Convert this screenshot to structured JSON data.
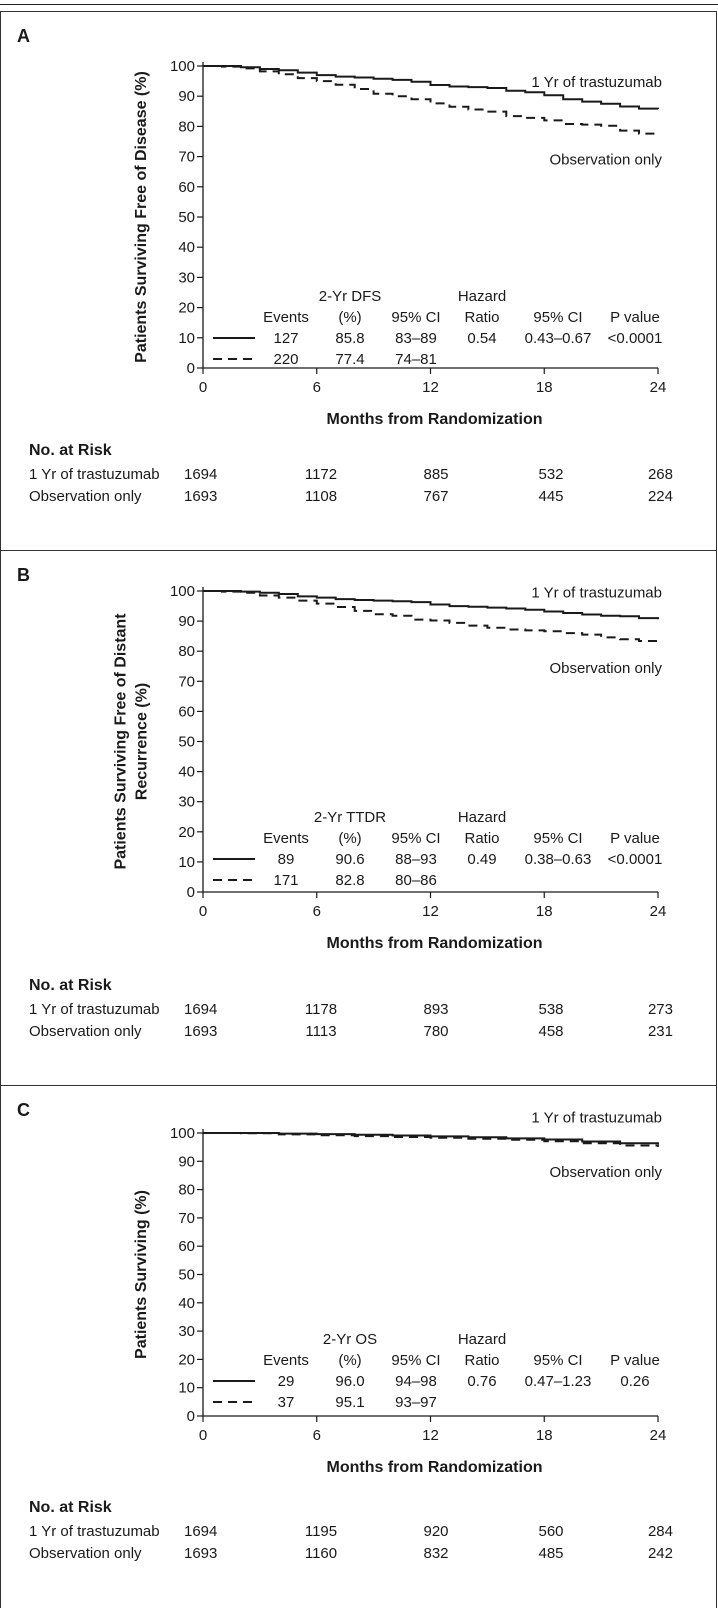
{
  "colors": {
    "line": "#1a1a1a",
    "border": "#333333",
    "background": "#ffffff"
  },
  "x_axis_label": "Months from Randomization",
  "risk_title": "No. at Risk",
  "chart_data": [
    {
      "panel": "A",
      "type": "line",
      "ylabel": "Patients Surviving Free of Disease (%)",
      "xlabel": "Months from Randomization",
      "xlim": [
        0,
        24
      ],
      "ylim": [
        0,
        100
      ],
      "xticks": [
        0,
        6,
        12,
        18,
        24
      ],
      "yticks": [
        0,
        10,
        20,
        30,
        40,
        50,
        60,
        70,
        80,
        90,
        100
      ],
      "grid": false,
      "series": [
        {
          "name": "1 Yr of trastuzumab",
          "style": "solid",
          "x": [
            0,
            1,
            2,
            3,
            4,
            5,
            6,
            7,
            8,
            9,
            10,
            11,
            12,
            13,
            14,
            15,
            16,
            17,
            18,
            19,
            20,
            21,
            22,
            23,
            24
          ],
          "y": [
            100,
            100,
            99.6,
            99.0,
            98.6,
            97.8,
            97.0,
            96.5,
            96.2,
            95.8,
            95.4,
            94.8,
            93.7,
            93.2,
            93.0,
            92.7,
            91.8,
            91.3,
            90.3,
            89.0,
            88.2,
            87.5,
            86.6,
            85.9,
            85.8
          ]
        },
        {
          "name": "Observation only",
          "style": "dashed",
          "x": [
            0,
            1,
            2,
            3,
            4,
            5,
            6,
            7,
            8,
            9,
            10,
            11,
            12,
            13,
            14,
            15,
            16,
            17,
            18,
            19,
            20,
            21,
            22,
            23,
            24
          ],
          "y": [
            100,
            99.8,
            99.2,
            98.2,
            97.3,
            96.0,
            95.0,
            93.8,
            92.4,
            90.8,
            90.0,
            89.0,
            87.6,
            86.5,
            85.6,
            84.9,
            83.4,
            82.8,
            82.0,
            80.8,
            80.6,
            80.2,
            78.6,
            77.6,
            77.4
          ]
        }
      ],
      "legend_table": {
        "header_line1": [
          "",
          "2-Yr DFS",
          "",
          "Hazard",
          "",
          ""
        ],
        "header_line2": [
          "Events",
          "(%)",
          "95% CI",
          "Ratio",
          "95% CI",
          "P value"
        ],
        "rows": [
          [
            "127",
            "85.8",
            "83–89",
            "0.54",
            "0.43–0.67",
            "<0.0001"
          ],
          [
            "220",
            "77.4",
            "74–81",
            "",
            "",
            ""
          ]
        ]
      },
      "risk_table": {
        "times": [
          0,
          6,
          12,
          18,
          24
        ],
        "rows": [
          {
            "label": "1 Yr of trastuzumab",
            "values": [
              "1694",
              "1172",
              "885",
              "532",
              "268"
            ]
          },
          {
            "label": "Observation only",
            "values": [
              "1693",
              "1108",
              "767",
              "445",
              "224"
            ]
          }
        ]
      }
    },
    {
      "panel": "B",
      "type": "line",
      "ylabel": "Patients Surviving Free of Distant Recurrence (%)",
      "ylabel_lines": [
        "Patients Surviving Free of Distant",
        "Recurrence (%)"
      ],
      "xlabel": "Months from Randomization",
      "xlim": [
        0,
        24
      ],
      "ylim": [
        0,
        100
      ],
      "xticks": [
        0,
        6,
        12,
        18,
        24
      ],
      "yticks": [
        0,
        10,
        20,
        30,
        40,
        50,
        60,
        70,
        80,
        90,
        100
      ],
      "grid": false,
      "series": [
        {
          "name": "1 Yr of trastuzumab",
          "style": "solid",
          "x": [
            0,
            1,
            2,
            3,
            4,
            5,
            6,
            7,
            8,
            9,
            10,
            11,
            12,
            13,
            14,
            15,
            16,
            17,
            18,
            19,
            20,
            21,
            22,
            23,
            24
          ],
          "y": [
            100,
            100,
            99.8,
            99.4,
            99.0,
            98.2,
            97.8,
            97.3,
            97.0,
            96.8,
            96.6,
            96.3,
            95.5,
            95.0,
            94.8,
            94.5,
            94.2,
            93.8,
            93.2,
            92.7,
            92.2,
            91.8,
            91.6,
            91.0,
            90.6
          ]
        },
        {
          "name": "Observation only",
          "style": "dashed",
          "x": [
            0,
            1,
            2,
            3,
            4,
            5,
            6,
            7,
            8,
            9,
            10,
            11,
            12,
            13,
            14,
            15,
            16,
            17,
            18,
            19,
            20,
            21,
            22,
            23,
            24
          ],
          "y": [
            100,
            99.8,
            99.4,
            98.5,
            97.8,
            96.8,
            95.8,
            94.7,
            93.4,
            92.3,
            91.8,
            90.5,
            90.2,
            89.4,
            88.5,
            87.8,
            87.2,
            86.9,
            86.6,
            86.0,
            85.5,
            84.6,
            84.0,
            83.4,
            82.8
          ]
        }
      ],
      "legend_table": {
        "header_line1": [
          "",
          "2-Yr TTDR",
          "",
          "Hazard",
          "",
          ""
        ],
        "header_line2": [
          "Events",
          "(%)",
          "95% CI",
          "Ratio",
          "95% CI",
          "P value"
        ],
        "rows": [
          [
            "89",
            "90.6",
            "88–93",
            "0.49",
            "0.38–0.63",
            "<0.0001"
          ],
          [
            "171",
            "82.8",
            "80–86",
            "",
            "",
            ""
          ]
        ]
      },
      "risk_table": {
        "times": [
          0,
          6,
          12,
          18,
          24
        ],
        "rows": [
          {
            "label": "1 Yr of trastuzumab",
            "values": [
              "1694",
              "1178",
              "893",
              "538",
              "273"
            ]
          },
          {
            "label": "Observation only",
            "values": [
              "1693",
              "1113",
              "780",
              "458",
              "231"
            ]
          }
        ]
      }
    },
    {
      "panel": "C",
      "type": "line",
      "ylabel": "Patients Surviving (%)",
      "xlabel": "Months from Randomization",
      "xlim": [
        0,
        24
      ],
      "ylim": [
        0,
        100
      ],
      "xticks": [
        0,
        6,
        12,
        18,
        24
      ],
      "yticks": [
        0,
        10,
        20,
        30,
        40,
        50,
        60,
        70,
        80,
        90,
        100
      ],
      "grid": false,
      "series": [
        {
          "name": "1 Yr of trastuzumab",
          "style": "solid",
          "x": [
            0,
            2,
            4,
            6,
            8,
            10,
            12,
            14,
            16,
            18,
            20,
            22,
            24
          ],
          "y": [
            100,
            100,
            99.8,
            99.6,
            99.4,
            99.1,
            98.8,
            98.5,
            98.1,
            97.7,
            97.0,
            96.4,
            96.0
          ]
        },
        {
          "name": "Observation only",
          "style": "dashed",
          "x": [
            0,
            2,
            4,
            6,
            8,
            10,
            12,
            14,
            16,
            18,
            20,
            22,
            24
          ],
          "y": [
            100,
            99.9,
            99.5,
            99.2,
            98.9,
            98.6,
            98.3,
            98.0,
            97.6,
            97.1,
            96.4,
            95.6,
            95.1
          ]
        }
      ],
      "legend_table": {
        "header_line1": [
          "",
          "2-Yr OS",
          "",
          "Hazard",
          "",
          ""
        ],
        "header_line2": [
          "Events",
          "(%)",
          "95% CI",
          "Ratio",
          "95% CI",
          "P value"
        ],
        "rows": [
          [
            "29",
            "96.0",
            "94–98",
            "0.76",
            "0.47–1.23",
            "0.26"
          ],
          [
            "37",
            "95.1",
            "93–97",
            "",
            "",
            ""
          ]
        ]
      },
      "risk_table": {
        "times": [
          0,
          6,
          12,
          18,
          24
        ],
        "rows": [
          {
            "label": "1 Yr of trastuzumab",
            "values": [
              "1694",
              "1195",
              "920",
              "560",
              "284"
            ]
          },
          {
            "label": "Observation only",
            "values": [
              "1693",
              "1160",
              "832",
              "485",
              "242"
            ]
          }
        ]
      }
    }
  ]
}
